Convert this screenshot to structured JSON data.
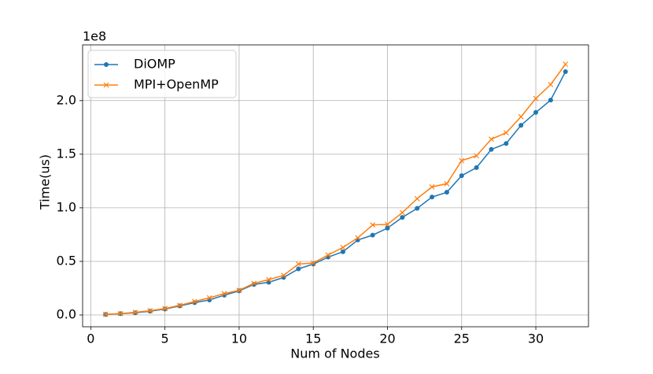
{
  "chart_data": {
    "type": "line",
    "xlabel": "Num of Nodes",
    "ylabel": "Time(us)",
    "y_offset_label": "1e8",
    "x": [
      1,
      2,
      3,
      4,
      5,
      6,
      7,
      8,
      9,
      10,
      11,
      12,
      13,
      14,
      15,
      16,
      17,
      18,
      19,
      20,
      21,
      22,
      23,
      24,
      25,
      26,
      27,
      28,
      29,
      30,
      31,
      32
    ],
    "series": [
      {
        "name": "DiOMP",
        "color": "#1f77b4",
        "marker": "o",
        "values": [
          0.005,
          0.012,
          0.02,
          0.035,
          0.055,
          0.085,
          0.115,
          0.14,
          0.185,
          0.225,
          0.285,
          0.305,
          0.35,
          0.43,
          0.475,
          0.54,
          0.59,
          0.7,
          0.745,
          0.81,
          0.91,
          0.995,
          1.1,
          1.145,
          1.3,
          1.375,
          1.545,
          1.6,
          1.77,
          1.89,
          2.005,
          2.27
        ]
      },
      {
        "name": "MPI+OpenMP",
        "color": "#ff7f0e",
        "marker": "x",
        "values": [
          0.006,
          0.013,
          0.025,
          0.04,
          0.06,
          0.09,
          0.125,
          0.16,
          0.2,
          0.23,
          0.295,
          0.33,
          0.37,
          0.475,
          0.485,
          0.56,
          0.63,
          0.72,
          0.84,
          0.845,
          0.955,
          1.085,
          1.195,
          1.225,
          1.44,
          1.485,
          1.64,
          1.7,
          1.85,
          2.02,
          2.15,
          2.34
        ]
      }
    ],
    "xlim": [
      -0.55,
      33.55
    ],
    "xticks": [
      0,
      5,
      10,
      15,
      20,
      25,
      30
    ],
    "ylim": [
      -0.11,
      2.52
    ],
    "yticks": [
      {
        "value": 0,
        "label": "0.0"
      },
      0.5,
      {
        "value": 1,
        "label": "1.0"
      },
      1.5,
      {
        "value": 2,
        "label": "2.0"
      }
    ],
    "grid": true,
    "legend": "upper left"
  }
}
